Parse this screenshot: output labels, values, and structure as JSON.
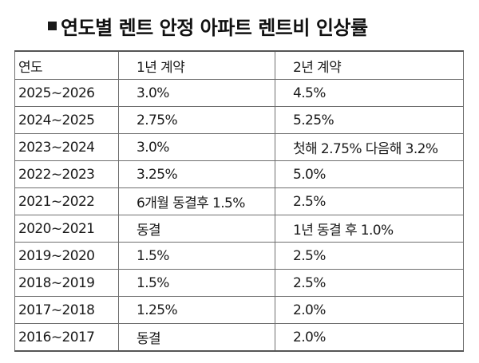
{
  "title": {
    "bullet": "■",
    "text": "연도별 렌트 안정 아파트 렌트비 인상률"
  },
  "table": {
    "headers": [
      "연도",
      "1년 계약",
      "2년 계약"
    ],
    "rows": [
      {
        "year": "2025~2026",
        "one_year": "3.0%",
        "two_year": "4.5%"
      },
      {
        "year": "2024~2025",
        "one_year": "2.75%",
        "two_year": "5.25%"
      },
      {
        "year": "2023~2024",
        "one_year": "3.0%",
        "two_year": "첫해 2.75% 다음해 3.2%"
      },
      {
        "year": "2022~2023",
        "one_year": "3.25%",
        "two_year": "5.0%"
      },
      {
        "year": "2021~2022",
        "one_year": "6개월 동결후 1.5%",
        "two_year": "2.5%"
      },
      {
        "year": "2020~2021",
        "one_year": "동결",
        "two_year": "1년 동결 후 1.0%"
      },
      {
        "year": "2019~2020",
        "one_year": "1.5%",
        "two_year": "2.5%"
      },
      {
        "year": "2018~2019",
        "one_year": "1.5%",
        "two_year": "2.5%"
      },
      {
        "year": "2017~2018",
        "one_year": "1.25%",
        "two_year": "2.0%"
      },
      {
        "year": "2016~2017",
        "one_year": "동결",
        "two_year": "2.0%"
      }
    ]
  }
}
